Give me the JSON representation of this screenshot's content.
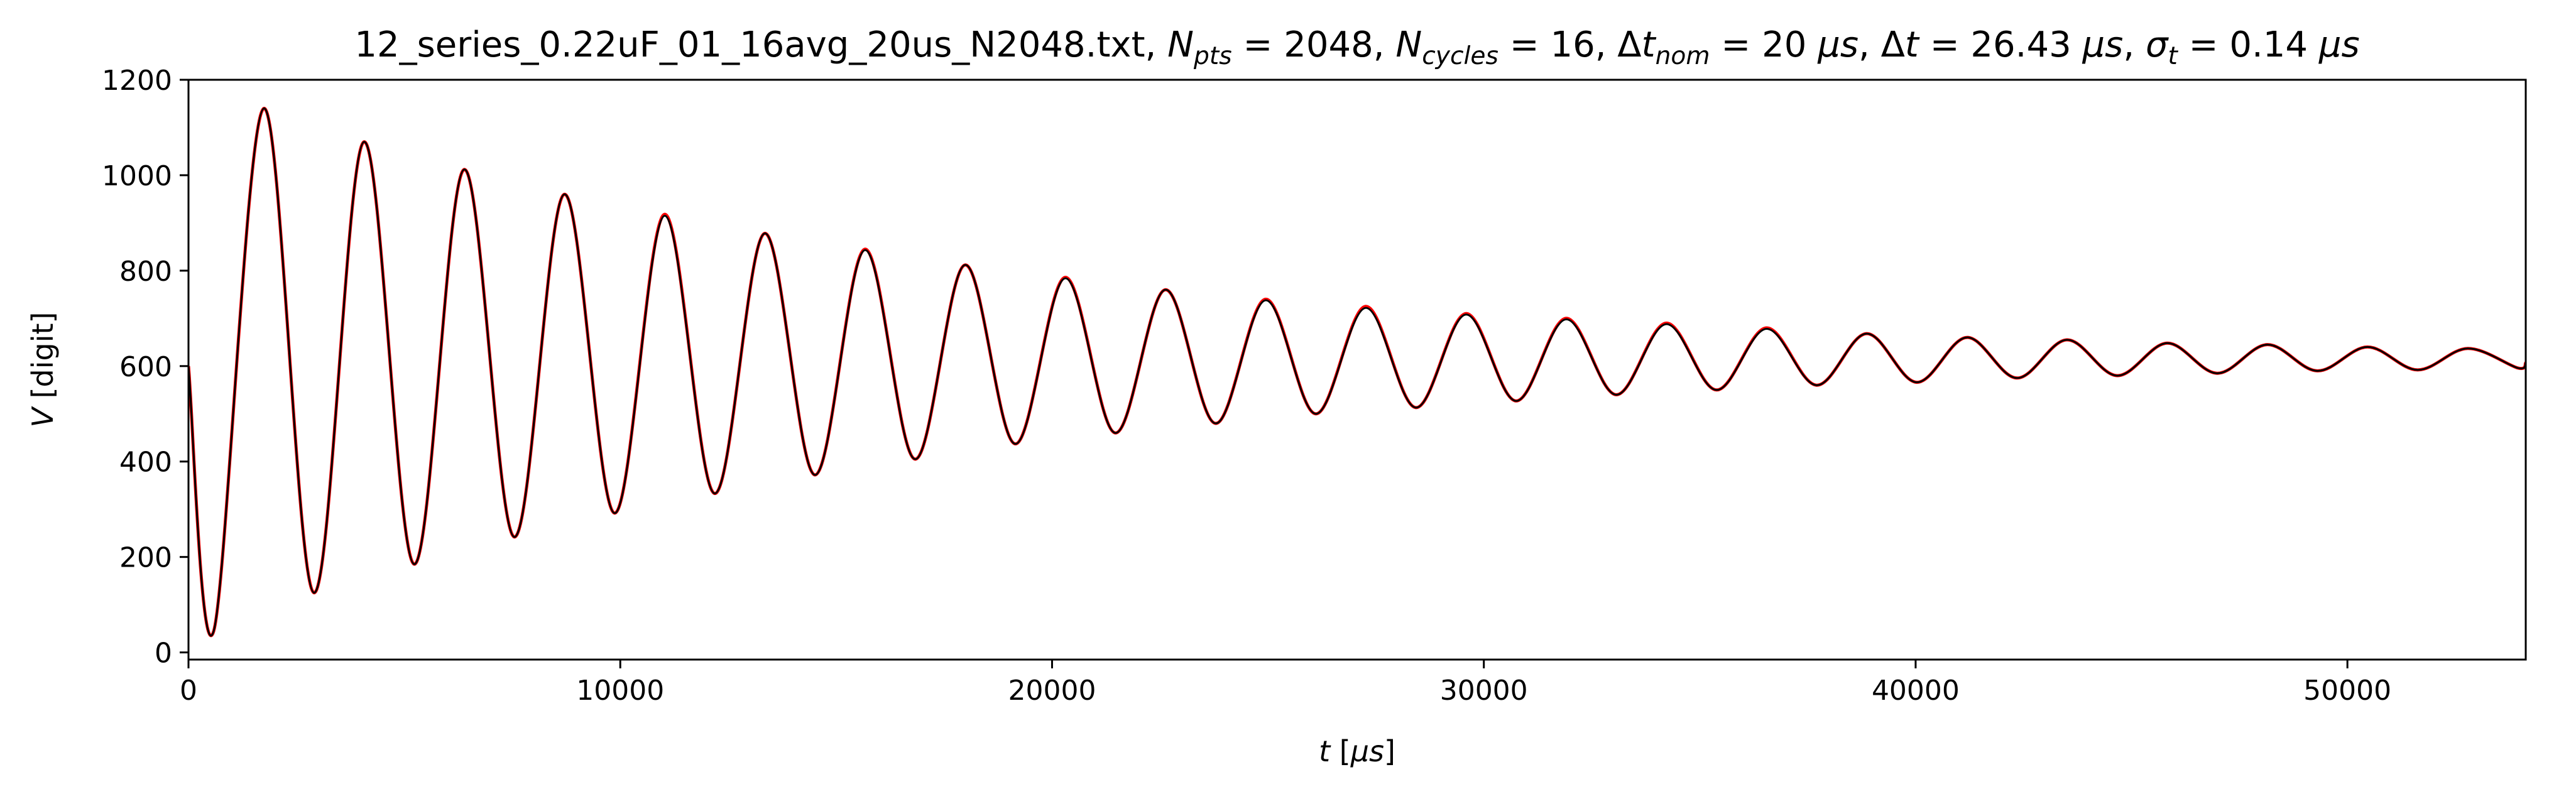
{
  "chart_data": {
    "type": "line",
    "title_parts": [
      {
        "text": "12_series_0.22uF_01_16avg_20us_N2048.txt, "
      },
      {
        "text": "N",
        "style": "italic"
      },
      {
        "text": "pts",
        "style": "sub-italic"
      },
      {
        "text": " = 2048, "
      },
      {
        "text": "N",
        "style": "italic"
      },
      {
        "text": "cycles",
        "style": "sub-italic"
      },
      {
        "text": " = 16, Δ"
      },
      {
        "text": "t",
        "style": "italic"
      },
      {
        "text": "nom",
        "style": "sub-italic"
      },
      {
        "text": " = 20 "
      },
      {
        "text": "μs",
        "style": "italic"
      },
      {
        "text": ", Δ"
      },
      {
        "text": "t",
        "style": "italic"
      },
      {
        "text": " = 26.43 "
      },
      {
        "text": "μs",
        "style": "italic"
      },
      {
        "text": ", "
      },
      {
        "text": "σ",
        "style": "italic"
      },
      {
        "text": "t",
        "style": "sub-italic"
      },
      {
        "text": " = 0.14 "
      },
      {
        "text": "μs",
        "style": "italic"
      }
    ],
    "xlabel_parts": [
      {
        "text": "t",
        "style": "italic"
      },
      {
        "text": " ["
      },
      {
        "text": "μs",
        "style": "italic"
      },
      {
        "text": "]"
      }
    ],
    "ylabel_parts": [
      {
        "text": "V",
        "style": "italic"
      },
      {
        "text": " [digit]"
      }
    ],
    "xlim": [
      0,
      54130
    ],
    "ylim": [
      -15,
      1200
    ],
    "xticks": [
      0,
      10000,
      20000,
      30000,
      40000,
      50000
    ],
    "xtick_labels": [
      "0",
      "10000",
      "20000",
      "30000",
      "40000",
      "50000"
    ],
    "yticks": [
      0,
      200,
      400,
      600,
      800,
      1000,
      1200
    ],
    "ytick_labels": [
      "0",
      "200",
      "400",
      "600",
      "800",
      "1000",
      "1200"
    ],
    "grid": false,
    "legend": "none",
    "series": [
      {
        "role": "measured",
        "color": "#ff0000",
        "x": [
          0,
          585,
          1745,
          2905,
          4065,
          5225,
          6385,
          7545,
          8705,
          9865,
          11025,
          12185,
          13345,
          14505,
          15665,
          16825,
          17985,
          19145,
          20305,
          21465,
          22625,
          23785,
          24945,
          26105,
          27265,
          28425,
          29585,
          30745,
          31905,
          33065,
          34225,
          35385,
          36545,
          37705,
          38865,
          40025,
          41185,
          42345,
          43505,
          44665,
          45825,
          46985,
          48145,
          49305,
          50465,
          51625,
          52785,
          53945,
          54130
        ],
        "y": [
          600,
          45,
          1140,
          125,
          1070,
          185,
          1012,
          242,
          960,
          292,
          918,
          333,
          878,
          372,
          845,
          405,
          812,
          437,
          786,
          460,
          760,
          480,
          740,
          500,
          725,
          513,
          710,
          527,
          700,
          540,
          690,
          550,
          680,
          560,
          668,
          566,
          660,
          575,
          655,
          580,
          648,
          585,
          645,
          590,
          640,
          592,
          637,
          596,
          607
        ]
      },
      {
        "role": "fit",
        "color": "#000000",
        "x": [
          0,
          585,
          1745,
          2905,
          4065,
          5225,
          6385,
          7545,
          8705,
          9865,
          11025,
          12185,
          13345,
          14505,
          15665,
          16825,
          17985,
          19145,
          20305,
          21465,
          22625,
          23785,
          24945,
          26105,
          27265,
          28425,
          29585,
          30745,
          31905,
          33065,
          34225,
          35385,
          36545,
          37705,
          38865,
          40025,
          41185,
          42345,
          43505,
          44665,
          45825,
          46985,
          48145,
          49305,
          50465,
          51625,
          52785,
          53945,
          54130
        ],
        "y": [
          600,
          45,
          1140,
          125,
          1070,
          185,
          1012,
          242,
          960,
          292,
          915,
          333,
          878,
          372,
          843,
          405,
          812,
          437,
          784,
          460,
          760,
          480,
          738,
          500,
          722,
          513,
          708,
          527,
          698,
          540,
          688,
          550,
          678,
          560,
          668,
          566,
          660,
          575,
          655,
          580,
          648,
          585,
          645,
          590,
          640,
          592,
          637,
          596,
          607
        ]
      }
    ]
  }
}
